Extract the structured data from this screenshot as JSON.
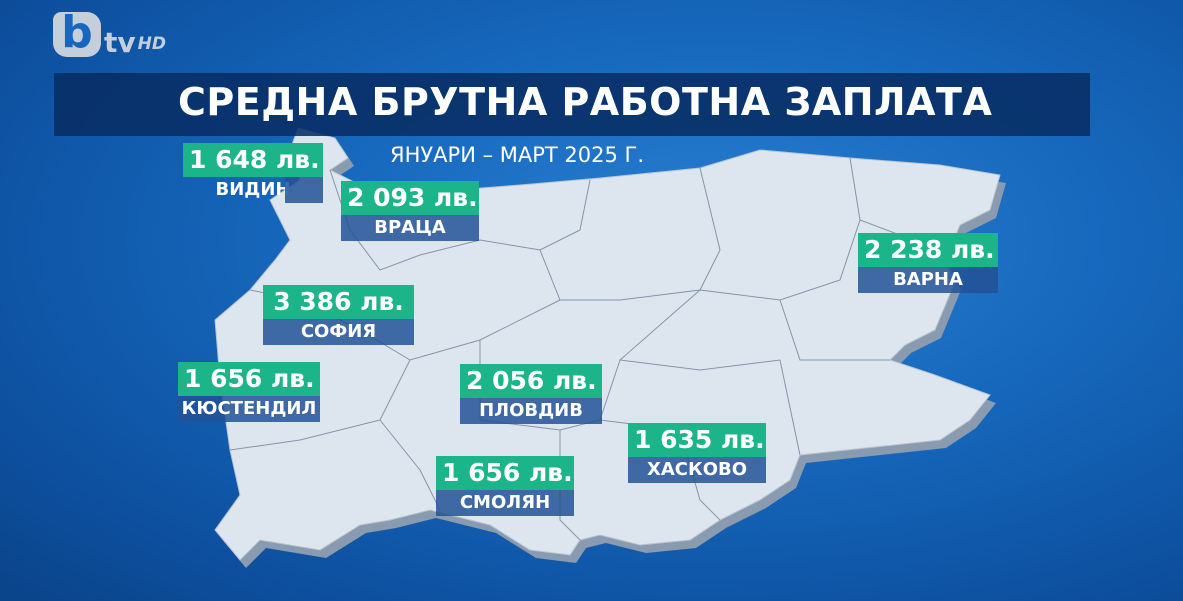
{
  "logo": {
    "b": "b",
    "tv": "tv",
    "hd": "HD"
  },
  "title": "СРЕДНА БРУТНА РАБОТНА ЗАПЛАТА",
  "subtitle": "ЯНУАРИ – МАРТ 2025 Г.",
  "colors": {
    "value_box": "#1cb58a",
    "city_box": "#225296",
    "map_fill": "#dde6ef",
    "background": "#1668bd"
  },
  "regions": [
    {
      "value": "1 648 лв.",
      "city": "ВИДИН"
    },
    {
      "value": "2 093 лв.",
      "city": "ВРАЦА"
    },
    {
      "value": "2 238 лв.",
      "city": "ВАРНА"
    },
    {
      "value": "3 386 лв.",
      "city": "СОФИЯ"
    },
    {
      "value": "1 656 лв.",
      "city": "КЮСТЕНДИЛ"
    },
    {
      "value": "2 056 лв.",
      "city": "ПЛОВДИВ"
    },
    {
      "value": "1 635 лв.",
      "city": "ХАСКОВО"
    },
    {
      "value": "1 656 лв.",
      "city": "СМОЛЯН"
    }
  ]
}
